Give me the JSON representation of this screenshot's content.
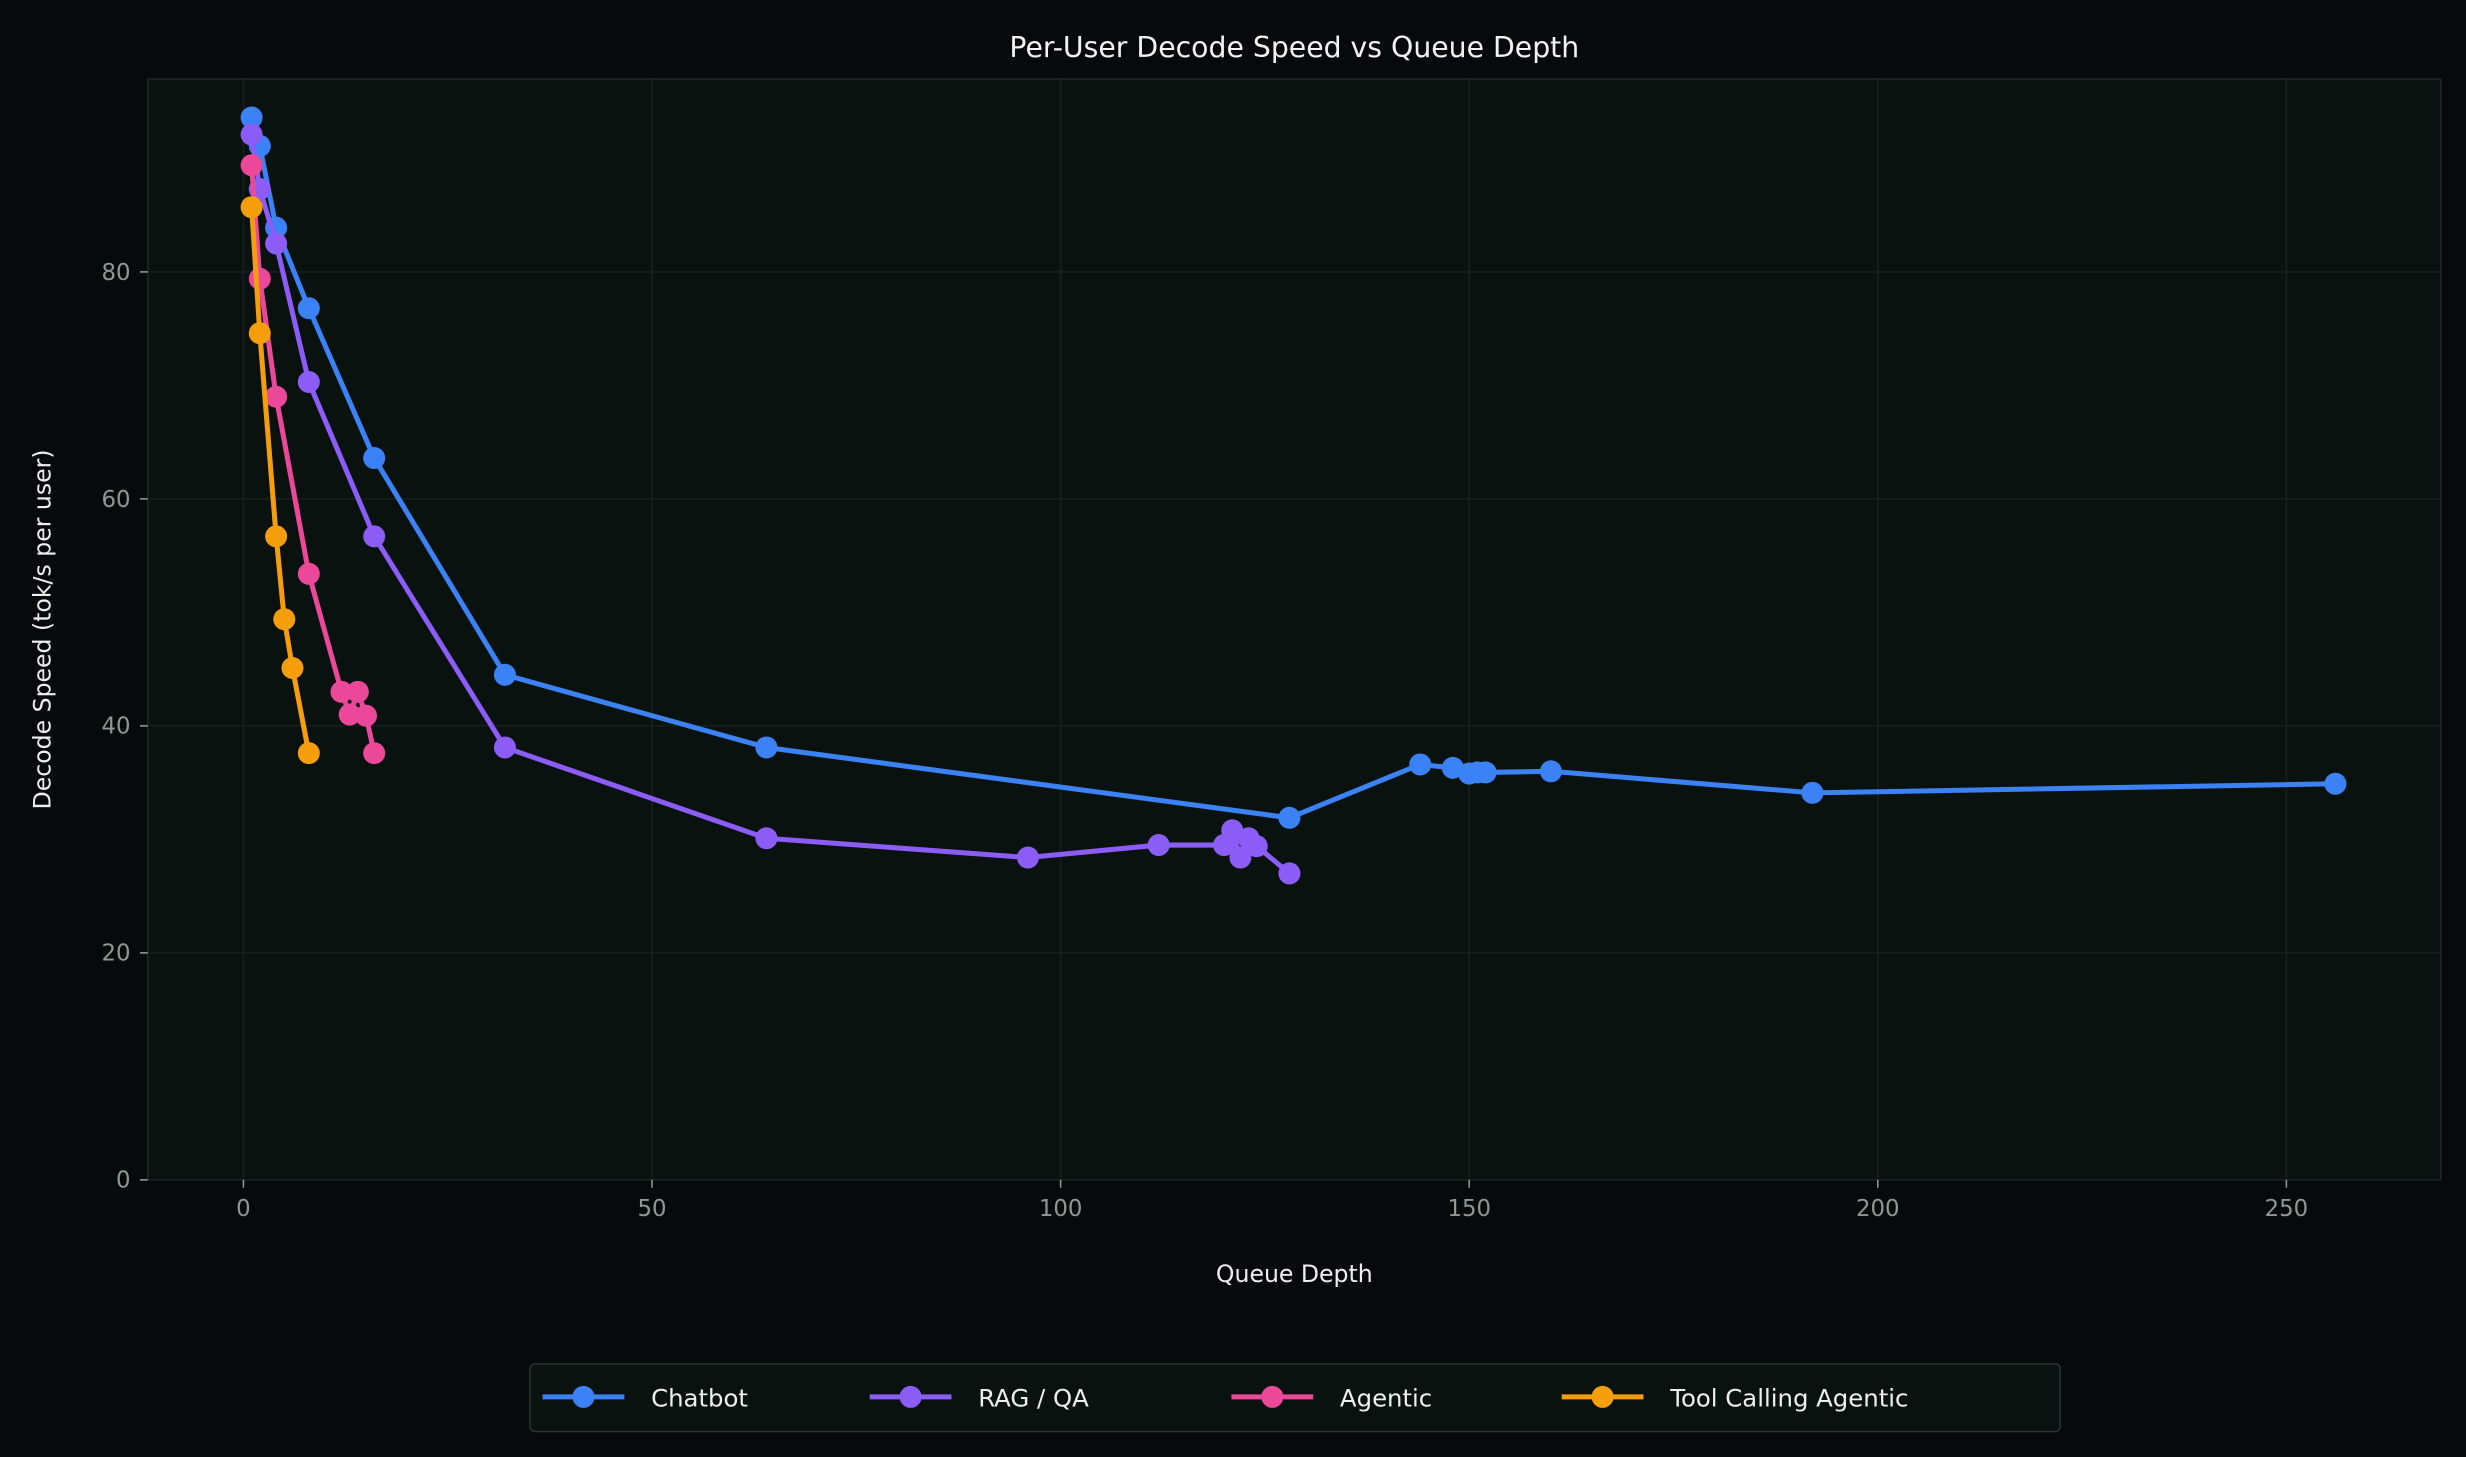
{
  "chart_data": {
    "type": "line",
    "title": "Per-User Decode Speed vs Queue Depth",
    "xlabel": "Queue Depth",
    "ylabel": "Decode Speed (tok/s per user)",
    "xlim": [
      -11.7,
      268.9
    ],
    "ylim": [
      0,
      97
    ],
    "xticks": [
      0,
      50,
      100,
      150,
      200,
      250
    ],
    "yticks": [
      0,
      20,
      40,
      60,
      80
    ],
    "grid": true,
    "legend": "bottom-center",
    "series": [
      {
        "name": "Chatbot",
        "color": "#3b82f6",
        "x": [
          1,
          2,
          4,
          8,
          16,
          32,
          64,
          128,
          144,
          148,
          150,
          151,
          152,
          160,
          192,
          256
        ],
        "y": [
          93.6,
          91.1,
          83.9,
          76.8,
          63.6,
          44.5,
          38.1,
          31.9,
          36.6,
          36.3,
          35.8,
          35.9,
          35.9,
          36.0,
          34.1,
          34.9
        ]
      },
      {
        "name": "RAG / QA",
        "color": "#8b5cf6",
        "x": [
          1,
          2,
          4,
          8,
          16,
          32,
          64,
          96,
          112,
          120,
          121,
          122,
          123,
          124,
          128
        ],
        "y": [
          92.1,
          87.3,
          82.5,
          70.3,
          56.7,
          38.1,
          30.1,
          28.4,
          29.5,
          29.5,
          30.8,
          28.4,
          30.1,
          29.4,
          27.0
        ]
      },
      {
        "name": "Agentic",
        "color": "#ec4899",
        "x": [
          1,
          2,
          4,
          8,
          12,
          13,
          14,
          15,
          16
        ],
        "y": [
          89.4,
          79.4,
          69.0,
          53.4,
          43.0,
          41.0,
          43.0,
          40.9,
          37.6
        ]
      },
      {
        "name": "Tool Calling Agentic",
        "color": "#f59e0b",
        "x": [
          1,
          2,
          4,
          5,
          6,
          8
        ],
        "y": [
          85.7,
          74.6,
          56.7,
          49.4,
          45.1,
          37.6
        ]
      }
    ]
  }
}
